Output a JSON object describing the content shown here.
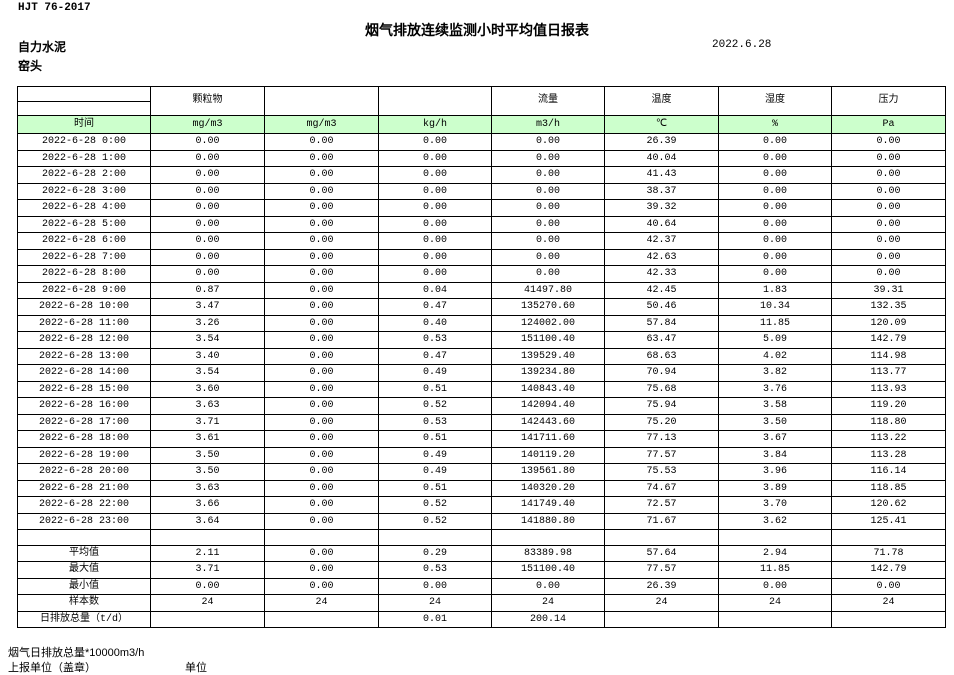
{
  "page": {
    "standard": "HJT 76-2017",
    "title": "烟气排放连续监测小时平均值日报表",
    "company": "自力水泥",
    "location": "窑头",
    "date": "2022.6.28"
  },
  "colors": {
    "unit_row_green": "#ccffcc",
    "border": "#000000"
  },
  "table": {
    "group_headers": [
      "",
      "颗粒物",
      "",
      "",
      "流量",
      "温度",
      "湿度",
      "压力"
    ],
    "unit_row": [
      "时间",
      "mg/m3",
      "mg/m3",
      "kg/h",
      "m3/h",
      "℃",
      "%",
      "Pa"
    ],
    "rows": [
      [
        "2022-6-28 0:00",
        "0.00",
        "0.00",
        "0.00",
        "0.00",
        "26.39",
        "0.00",
        "0.00"
      ],
      [
        "2022-6-28 1:00",
        "0.00",
        "0.00",
        "0.00",
        "0.00",
        "40.04",
        "0.00",
        "0.00"
      ],
      [
        "2022-6-28 2:00",
        "0.00",
        "0.00",
        "0.00",
        "0.00",
        "41.43",
        "0.00",
        "0.00"
      ],
      [
        "2022-6-28 3:00",
        "0.00",
        "0.00",
        "0.00",
        "0.00",
        "38.37",
        "0.00",
        "0.00"
      ],
      [
        "2022-6-28 4:00",
        "0.00",
        "0.00",
        "0.00",
        "0.00",
        "39.32",
        "0.00",
        "0.00"
      ],
      [
        "2022-6-28 5:00",
        "0.00",
        "0.00",
        "0.00",
        "0.00",
        "40.64",
        "0.00",
        "0.00"
      ],
      [
        "2022-6-28 6:00",
        "0.00",
        "0.00",
        "0.00",
        "0.00",
        "42.37",
        "0.00",
        "0.00"
      ],
      [
        "2022-6-28 7:00",
        "0.00",
        "0.00",
        "0.00",
        "0.00",
        "42.63",
        "0.00",
        "0.00"
      ],
      [
        "2022-6-28 8:00",
        "0.00",
        "0.00",
        "0.00",
        "0.00",
        "42.33",
        "0.00",
        "0.00"
      ],
      [
        "2022-6-28 9:00",
        "0.87",
        "0.00",
        "0.04",
        "41497.80",
        "42.45",
        "1.83",
        "39.31"
      ],
      [
        "2022-6-28 10:00",
        "3.47",
        "0.00",
        "0.47",
        "135270.60",
        "50.46",
        "10.34",
        "132.35"
      ],
      [
        "2022-6-28 11:00",
        "3.26",
        "0.00",
        "0.40",
        "124002.00",
        "57.84",
        "11.85",
        "120.09"
      ],
      [
        "2022-6-28 12:00",
        "3.54",
        "0.00",
        "0.53",
        "151100.40",
        "63.47",
        "5.09",
        "142.79"
      ],
      [
        "2022-6-28 13:00",
        "3.40",
        "0.00",
        "0.47",
        "139529.40",
        "68.63",
        "4.02",
        "114.98"
      ],
      [
        "2022-6-28 14:00",
        "3.54",
        "0.00",
        "0.49",
        "139234.80",
        "70.94",
        "3.82",
        "113.77"
      ],
      [
        "2022-6-28 15:00",
        "3.60",
        "0.00",
        "0.51",
        "140843.40",
        "75.68",
        "3.76",
        "113.93"
      ],
      [
        "2022-6-28 16:00",
        "3.63",
        "0.00",
        "0.52",
        "142094.40",
        "75.94",
        "3.58",
        "119.20"
      ],
      [
        "2022-6-28 17:00",
        "3.71",
        "0.00",
        "0.53",
        "142443.60",
        "75.20",
        "3.50",
        "118.80"
      ],
      [
        "2022-6-28 18:00",
        "3.61",
        "0.00",
        "0.51",
        "141711.60",
        "77.13",
        "3.67",
        "113.22"
      ],
      [
        "2022-6-28 19:00",
        "3.50",
        "0.00",
        "0.49",
        "140119.20",
        "77.57",
        "3.84",
        "113.28"
      ],
      [
        "2022-6-28 20:00",
        "3.50",
        "0.00",
        "0.49",
        "139561.80",
        "75.53",
        "3.96",
        "116.14"
      ],
      [
        "2022-6-28 21:00",
        "3.63",
        "0.00",
        "0.51",
        "140320.20",
        "74.67",
        "3.89",
        "118.85"
      ],
      [
        "2022-6-28 22:00",
        "3.66",
        "0.00",
        "0.52",
        "141749.40",
        "72.57",
        "3.70",
        "120.62"
      ],
      [
        "2022-6-28 23:00",
        "3.64",
        "0.00",
        "0.52",
        "141880.80",
        "71.67",
        "3.62",
        "125.41"
      ]
    ],
    "summary_rows": [
      [
        "平均值",
        "2.11",
        "0.00",
        "0.29",
        "83389.98",
        "57.64",
        "2.94",
        "71.78"
      ],
      [
        "最大值",
        "3.71",
        "0.00",
        "0.53",
        "151100.40",
        "77.57",
        "11.85",
        "142.79"
      ],
      [
        "最小值",
        "0.00",
        "0.00",
        "0.00",
        "0.00",
        "26.39",
        "0.00",
        "0.00"
      ],
      [
        "样本数",
        "24",
        "24",
        "24",
        "24",
        "24",
        "24",
        "24"
      ],
      [
        "日排放总量（t/d）",
        "",
        "",
        "0.01",
        "200.14",
        "",
        "",
        ""
      ]
    ]
  },
  "footer": {
    "note": "烟气日排放总量*10000m3/h",
    "report_unit": "上报单位（盖章）",
    "unit_label": "单位"
  }
}
